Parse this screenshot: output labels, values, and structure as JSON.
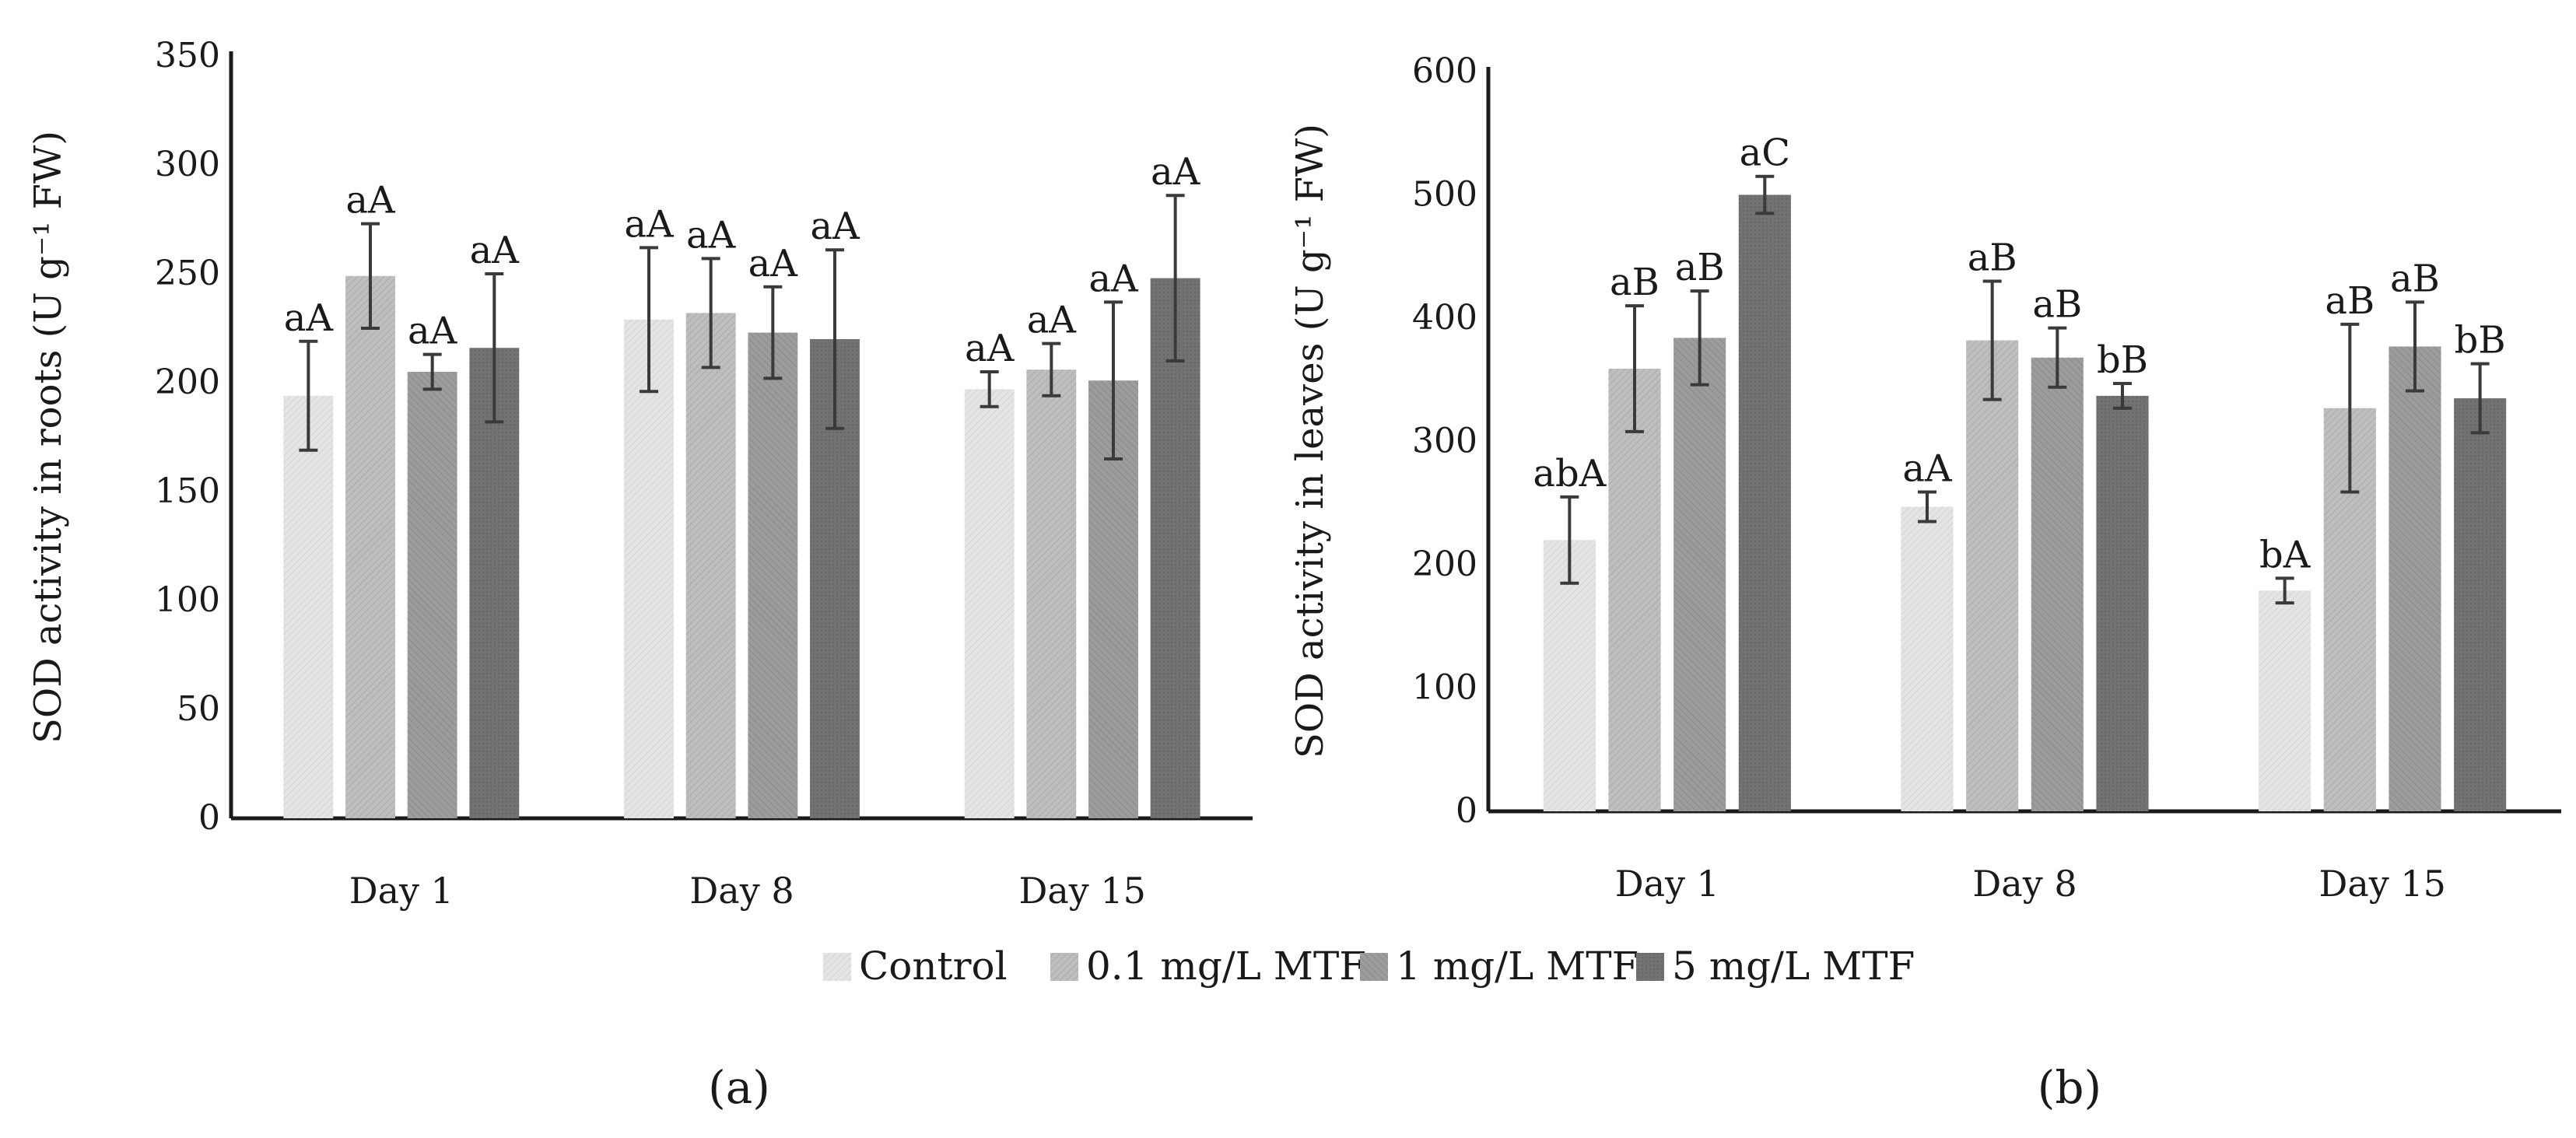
{
  "legend": [
    "Control",
    "0.1 mg/L MTF",
    "1 mg/L MTF",
    "5 mg/L MTF"
  ],
  "series_colors": [
    "#e2e2e2",
    "#bcbcbc",
    "#9a9a9a",
    "#707070"
  ],
  "panel_labels": [
    "(a)",
    "(b)"
  ],
  "chart_data": [
    {
      "type": "bar",
      "title": "",
      "xlabel": "",
      "ylabel": "SOD activity in roots  (U g⁻¹ FW)",
      "ylim": [
        0,
        350
      ],
      "yticks": [
        0,
        50,
        100,
        150,
        200,
        250,
        300,
        350
      ],
      "categories": [
        "Day 1",
        "Day 8",
        "Day 15"
      ],
      "series": [
        {
          "name": "Control",
          "values": [
            194,
            229,
            197
          ],
          "errors": [
            25,
            33,
            8
          ],
          "labels": [
            "aA",
            "aA",
            "aA"
          ]
        },
        {
          "name": "0.1 mg/L MTF",
          "values": [
            249,
            232,
            206
          ],
          "errors": [
            24,
            25,
            12
          ],
          "labels": [
            "aA",
            "aA",
            "aA"
          ]
        },
        {
          "name": "1 mg/L MTF",
          "values": [
            205,
            223,
            201
          ],
          "errors": [
            8,
            21,
            36
          ],
          "labels": [
            "aA",
            "aA",
            "aA"
          ]
        },
        {
          "name": "5 mg/L MTF",
          "values": [
            216,
            220,
            248
          ],
          "errors": [
            34,
            41,
            38
          ],
          "labels": [
            "aA",
            "aA",
            "aA"
          ]
        }
      ]
    },
    {
      "type": "bar",
      "title": "",
      "xlabel": "",
      "ylabel": "SOD activity in leaves  (U g⁻¹ FW)",
      "ylim": [
        0,
        600
      ],
      "yticks": [
        0,
        100,
        200,
        300,
        400,
        500,
        600
      ],
      "categories": [
        "Day 1",
        "Day 8",
        "Day 15"
      ],
      "series": [
        {
          "name": "Control",
          "values": [
            220,
            247,
            179
          ],
          "errors": [
            35,
            12,
            10
          ],
          "labels": [
            "abA",
            "aA",
            "bA"
          ]
        },
        {
          "name": "0.1 mg/L MTF",
          "values": [
            359,
            382,
            327
          ],
          "errors": [
            51,
            48,
            68
          ],
          "labels": [
            "aB",
            "aB",
            "aB"
          ]
        },
        {
          "name": "1 mg/L MTF",
          "values": [
            384,
            368,
            377
          ],
          "errors": [
            38,
            24,
            36
          ],
          "labels": [
            "aB",
            "aB",
            "aB"
          ]
        },
        {
          "name": "5 mg/L MTF",
          "values": [
            500,
            337,
            335
          ],
          "errors": [
            15,
            10,
            28
          ],
          "labels": [
            "aC",
            "bB",
            "bB"
          ]
        }
      ]
    }
  ]
}
